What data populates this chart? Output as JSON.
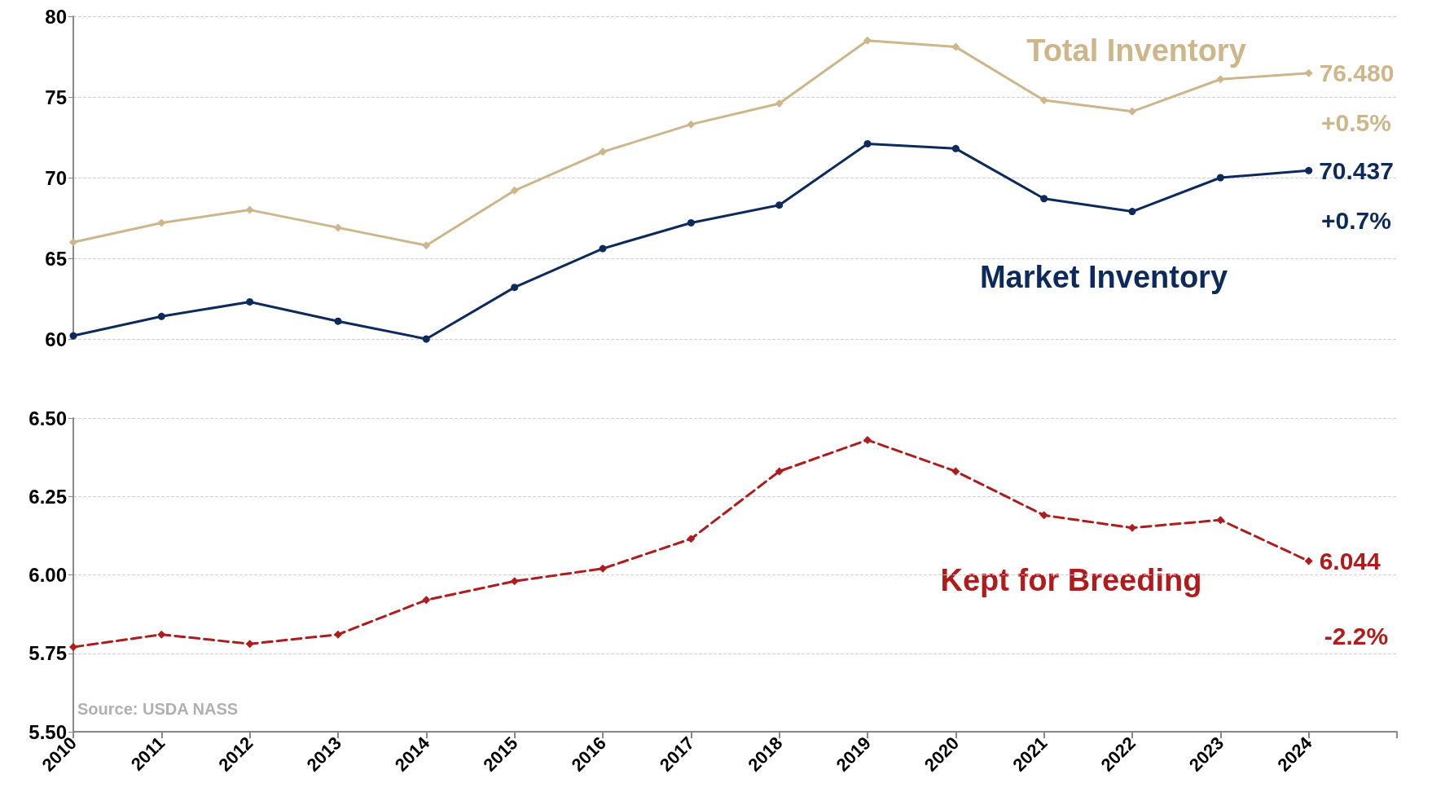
{
  "chart_data": [
    {
      "type": "line",
      "x": [
        2010,
        2011,
        2012,
        2013,
        2014,
        2015,
        2016,
        2017,
        2018,
        2019,
        2020,
        2021,
        2022,
        2023,
        2024
      ],
      "series": [
        {
          "name": "Total Inventory",
          "color": "#cdb68a",
          "marker": "diamond",
          "line_style": "solid",
          "values": [
            66.0,
            67.2,
            68.0,
            66.9,
            65.8,
            69.2,
            71.6,
            73.3,
            74.6,
            78.5,
            78.1,
            74.8,
            74.1,
            76.1,
            76.48
          ],
          "value_labels": [
            null,
            null,
            null,
            null,
            null,
            null,
            null,
            null,
            null,
            null,
            null,
            null,
            null,
            null,
            "76.480"
          ]
        },
        {
          "name": "Market Inventory",
          "color": "#0d2a5c",
          "marker": "circle",
          "line_style": "solid",
          "values": [
            60.2,
            61.4,
            62.3,
            61.1,
            60.0,
            63.2,
            65.6,
            67.2,
            68.3,
            72.1,
            71.8,
            68.7,
            67.9,
            70.0,
            70.437
          ],
          "value_labels": [
            null,
            null,
            null,
            null,
            null,
            null,
            null,
            null,
            null,
            null,
            null,
            null,
            null,
            null,
            "70.437"
          ]
        }
      ],
      "xlim": [
        2010,
        2025
      ],
      "xticks": [
        2010,
        2011,
        2012,
        2013,
        2014,
        2015,
        2016,
        2017,
        2018,
        2019,
        2020,
        2021,
        2022,
        2023,
        2024
      ],
      "ylim": [
        60,
        80
      ],
      "yticks": [
        60,
        65,
        70,
        75,
        80
      ],
      "grid": "y",
      "tick_labels": "y",
      "annotations": [
        "+0.5%",
        "+0.7%"
      ]
    },
    {
      "type": "line",
      "x": [
        2010,
        2011,
        2012,
        2013,
        2014,
        2015,
        2016,
        2017,
        2018,
        2019,
        2020,
        2021,
        2022,
        2023,
        2024
      ],
      "series": [
        {
          "name": "Kept for Breeding",
          "color": "#b01c1c",
          "marker": "diamond",
          "line_style": "dashed",
          "values": [
            5.77,
            5.81,
            5.78,
            5.81,
            5.92,
            5.98,
            6.02,
            6.115,
            6.33,
            6.43,
            6.33,
            6.19,
            6.15,
            6.175,
            6.044
          ],
          "value_labels": [
            null,
            null,
            null,
            null,
            null,
            null,
            null,
            null,
            null,
            null,
            null,
            null,
            null,
            null,
            "6.044"
          ]
        }
      ],
      "xlim": [
        2010,
        2025
      ],
      "xticks": [
        2010,
        2011,
        2012,
        2013,
        2014,
        2015,
        2016,
        2017,
        2018,
        2019,
        2020,
        2021,
        2022,
        2023,
        2024,
        {
          "value": 2025,
          "label": null
        }
      ],
      "ylim": [
        5.5,
        6.5
      ],
      "yticks": [
        {
          "value": 5.5,
          "label": "5.50"
        },
        {
          "value": 5.75,
          "label": "5.75"
        },
        {
          "value": 6.0,
          "label": "6.00"
        },
        {
          "value": 6.25,
          "label": "6.25"
        },
        {
          "value": 6.5,
          "label": "6.50"
        }
      ],
      "grid": "y",
      "annotations": [
        "-2.2%",
        "Source: USDA NASS"
      ]
    }
  ]
}
